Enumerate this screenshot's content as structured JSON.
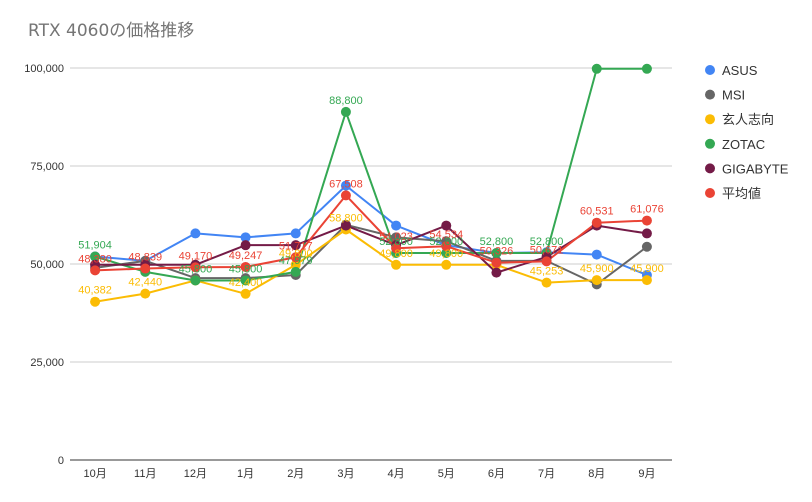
{
  "chart_data": {
    "type": "line",
    "title": "RTX 4060の価格推移",
    "xlabel": "",
    "ylabel": "",
    "categories": [
      "10月",
      "11月",
      "12月",
      "1月",
      "2月",
      "3月",
      "4月",
      "5月",
      "6月",
      "7月",
      "8月",
      "9月"
    ],
    "ylim": [
      0,
      100000
    ],
    "yticks": [
      {
        "value": 0,
        "label": "0"
      },
      {
        "value": 25000,
        "label": "25,000"
      },
      {
        "value": 50000,
        "label": "50,000"
      },
      {
        "value": 75000,
        "label": "75,000"
      },
      {
        "value": 100000,
        "label": "100,000"
      }
    ],
    "grid": true,
    "legend_position": "right",
    "series": [
      {
        "name": "ASUS",
        "color": "#4285f4",
        "values": [
          51904,
          50800,
          57800,
          56800,
          57800,
          70000,
          59800,
          54800,
          52800,
          53000,
          52400,
          47200
        ]
      },
      {
        "name": "MSI",
        "color": "#666666",
        "values": [
          49000,
          50800,
          46400,
          46400,
          47200,
          60000,
          56800,
          55800,
          50800,
          50800,
          44800,
          54400
        ]
      },
      {
        "name": "玄人志向",
        "color": "#fbbc04",
        "values": [
          40382,
          42440,
          45800,
          42400,
          49800,
          58800,
          49800,
          49800,
          49800,
          45253,
          45900,
          45900
        ]
      },
      {
        "name": "ZOTAC",
        "color": "#34a853",
        "values": [
          51904,
          48000,
          45800,
          45800,
          47979,
          88800,
          52800,
          52800,
          52800,
          52800,
          99800,
          99800
        ]
      },
      {
        "name": "GIGABYTE",
        "color": "#741b47",
        "values": [
          49800,
          49800,
          49800,
          54800,
          54800,
          59800,
          54800,
          59800,
          47800,
          51800,
          59800,
          57800
        ]
      },
      {
        "name": "平均値",
        "color": "#ea4335",
        "values": [
          48380,
          48839,
          49170,
          49247,
          51717,
          67508,
          54023,
          54534,
          50326,
          50671,
          60531,
          61076
        ]
      }
    ],
    "data_labels": [
      {
        "text": "51,904",
        "x_index": 0,
        "value": 51904,
        "color": "#34a853"
      },
      {
        "text": "48,380",
        "x_index": 0,
        "value": 48380,
        "color": "#ea4335"
      },
      {
        "text": "40,382",
        "x_index": 0,
        "value": 40382,
        "color": "#fbbc04"
      },
      {
        "text": "48,839",
        "x_index": 1,
        "value": 48839,
        "color": "#ea4335"
      },
      {
        "text": "42,440",
        "x_index": 1,
        "value": 42440,
        "color": "#fbbc04"
      },
      {
        "text": "49,170",
        "x_index": 2,
        "value": 49170,
        "color": "#ea4335"
      },
      {
        "text": "45,800",
        "x_index": 2,
        "value": 45800,
        "color": "#34a853"
      },
      {
        "text": "49,247",
        "x_index": 3,
        "value": 49247,
        "color": "#ea4335"
      },
      {
        "text": "45,800",
        "x_index": 3,
        "value": 45800,
        "color": "#34a853"
      },
      {
        "text": "42,400",
        "x_index": 3,
        "value": 42400,
        "color": "#fbbc04"
      },
      {
        "text": "51,717",
        "x_index": 4,
        "value": 51717,
        "color": "#ea4335"
      },
      {
        "text": "49,800",
        "x_index": 4,
        "value": 49800,
        "color": "#fbbc04"
      },
      {
        "text": "47,979",
        "x_index": 4,
        "value": 47979,
        "color": "#34a853"
      },
      {
        "text": "88,800",
        "x_index": 5,
        "value": 88800,
        "color": "#34a853"
      },
      {
        "text": "67,508",
        "x_index": 5,
        "value": 67508,
        "color": "#ea4335"
      },
      {
        "text": "58,800",
        "x_index": 5,
        "value": 58800,
        "color": "#fbbc04"
      },
      {
        "text": "54,023",
        "x_index": 6,
        "value": 54023,
        "color": "#ea4335"
      },
      {
        "text": "52,800",
        "x_index": 6,
        "value": 52800,
        "color": "#34a853"
      },
      {
        "text": "49,800",
        "x_index": 6,
        "value": 49800,
        "color": "#fbbc04"
      },
      {
        "text": "54,534",
        "x_index": 7,
        "value": 54534,
        "color": "#ea4335"
      },
      {
        "text": "52,800",
        "x_index": 7,
        "value": 52800,
        "color": "#34a853"
      },
      {
        "text": "49,800",
        "x_index": 7,
        "value": 49800,
        "color": "#fbbc04"
      },
      {
        "text": "52,800",
        "x_index": 8,
        "value": 52800,
        "color": "#34a853"
      },
      {
        "text": "50,326",
        "x_index": 8,
        "value": 50326,
        "color": "#ea4335"
      },
      {
        "text": "52,800",
        "x_index": 9,
        "value": 52800,
        "color": "#34a853"
      },
      {
        "text": "50,671",
        "x_index": 9,
        "value": 50671,
        "color": "#ea4335"
      },
      {
        "text": "45,253",
        "x_index": 9,
        "value": 45253,
        "color": "#fbbc04"
      },
      {
        "text": "60,531",
        "x_index": 10,
        "value": 60531,
        "color": "#ea4335"
      },
      {
        "text": "45,900",
        "x_index": 10,
        "value": 45900,
        "color": "#fbbc04"
      },
      {
        "text": "61,076",
        "x_index": 11,
        "value": 61076,
        "color": "#ea4335"
      },
      {
        "text": "45,900",
        "x_index": 11,
        "value": 45900,
        "color": "#fbbc04"
      }
    ]
  }
}
